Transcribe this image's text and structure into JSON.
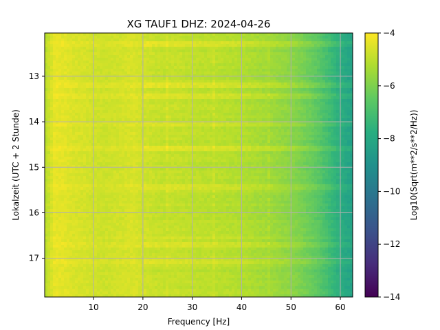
{
  "chart_data": {
    "type": "heatmap",
    "title": "XG TAUF1  DHZ: 2024-04-26",
    "xlabel": "Frequency [Hz]",
    "ylabel": "Lokalzeit (UTC + 2 Stunde)",
    "xlim": [
      0.1,
      62.5
    ],
    "ylim": [
      12.05,
      17.85
    ],
    "x_ticks": [
      10,
      20,
      30,
      40,
      50,
      60
    ],
    "y_ticks": [
      13,
      14,
      15,
      16,
      17
    ],
    "y_inverted": true,
    "grid": true,
    "colormap": "viridis",
    "colorbar": {
      "label": "Log10(Sqrt(m**2/s**2/Hz))",
      "range": [
        -14,
        -4
      ],
      "ticks": [
        -4,
        -6,
        -8,
        -10,
        -12,
        -14
      ]
    },
    "spectrum_profile": {
      "frequency_hz": [
        0.5,
        2,
        4,
        6,
        8,
        10,
        12,
        14,
        16,
        18,
        20,
        22,
        24,
        26,
        28,
        30,
        32,
        34,
        36,
        38,
        40,
        42,
        44,
        46,
        48,
        50,
        52,
        54,
        56,
        58,
        60,
        62.5
      ],
      "log10_amplitude": [
        -5.0,
        -4.35,
        -4.4,
        -4.55,
        -4.6,
        -4.7,
        -4.75,
        -4.7,
        -4.65,
        -4.55,
        -4.7,
        -4.8,
        -4.9,
        -4.85,
        -4.9,
        -4.95,
        -5.0,
        -5.0,
        -5.05,
        -5.1,
        -5.15,
        -5.25,
        -5.35,
        -5.45,
        -5.6,
        -5.75,
        -6.0,
        -6.3,
        -6.7,
        -7.2,
        -7.8,
        -8.3
      ]
    },
    "spectral_lines_hz": [
      25,
      34.5,
      45.5
    ],
    "bright_time_bands_h": [
      12.3,
      13.2,
      13.45,
      14.05,
      14.6,
      15.45,
      16.55,
      16.7,
      17.05
    ]
  }
}
